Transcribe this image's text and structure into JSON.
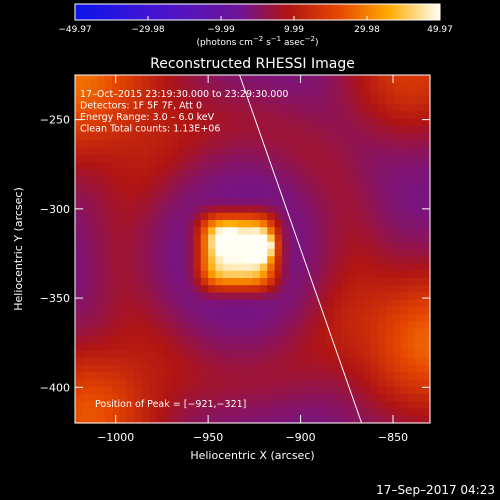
{
  "chart_data": {
    "type": "heatmap",
    "title": "Reconstructed RHESSI Image",
    "xlabel": "Heliocentric X (arcsec)",
    "ylabel": "Heliocentric Y (arcsec)",
    "xlim": [
      -1022,
      -830
    ],
    "ylim": [
      -420,
      -225
    ],
    "x_ticks": [
      {
        "value": -1000,
        "label": "−1000"
      },
      {
        "value": -950,
        "label": "−950"
      },
      {
        "value": -900,
        "label": "−900"
      },
      {
        "value": -850,
        "label": "−850"
      }
    ],
    "y_ticks": [
      {
        "value": -250,
        "label": "−250"
      },
      {
        "value": -300,
        "label": "−300"
      },
      {
        "value": -350,
        "label": "−350"
      },
      {
        "value": -400,
        "label": "−400"
      }
    ],
    "colorbar": {
      "min": -49.97,
      "max": 49.97,
      "ticks": [
        {
          "value": -49.97,
          "label": "−49.97"
        },
        {
          "value": -29.98,
          "label": "−29.98"
        },
        {
          "value": -9.99,
          "label": "−9.99"
        },
        {
          "value": 9.99,
          "label": "9.99"
        },
        {
          "value": 29.98,
          "label": "29.98"
        },
        {
          "value": 49.97,
          "label": "49.97"
        }
      ],
      "units_text": "(photons cm",
      "units_exp1": "−2",
      "units_mid": " s",
      "units_exp2": "−1",
      "units_mid2": " asec",
      "units_exp3": "−2",
      "units_end": ")"
    },
    "info_lines": [
      "17–Oct–2015 23:19:30.000 to 23:29:30.000",
      "Detectors: 1F 5F 7F, Att 0",
      "Energy Range: 3.0 – 6.0 keV",
      "Clean    Total counts: 1.13E+06"
    ],
    "peak_label": "Position of Peak = [−921,−321]",
    "peak": {
      "x": -921,
      "y": -321
    },
    "source": {
      "x": -934,
      "y": -324,
      "half_width": 21,
      "peak_value": 49.97
    },
    "limb_line": [
      {
        "x": -933,
        "y": -225
      },
      {
        "x": -867,
        "y": -420
      }
    ],
    "timestamp": "17–Sep–2017 04:23",
    "grid": false,
    "colormap": "rhessi-plasma"
  }
}
